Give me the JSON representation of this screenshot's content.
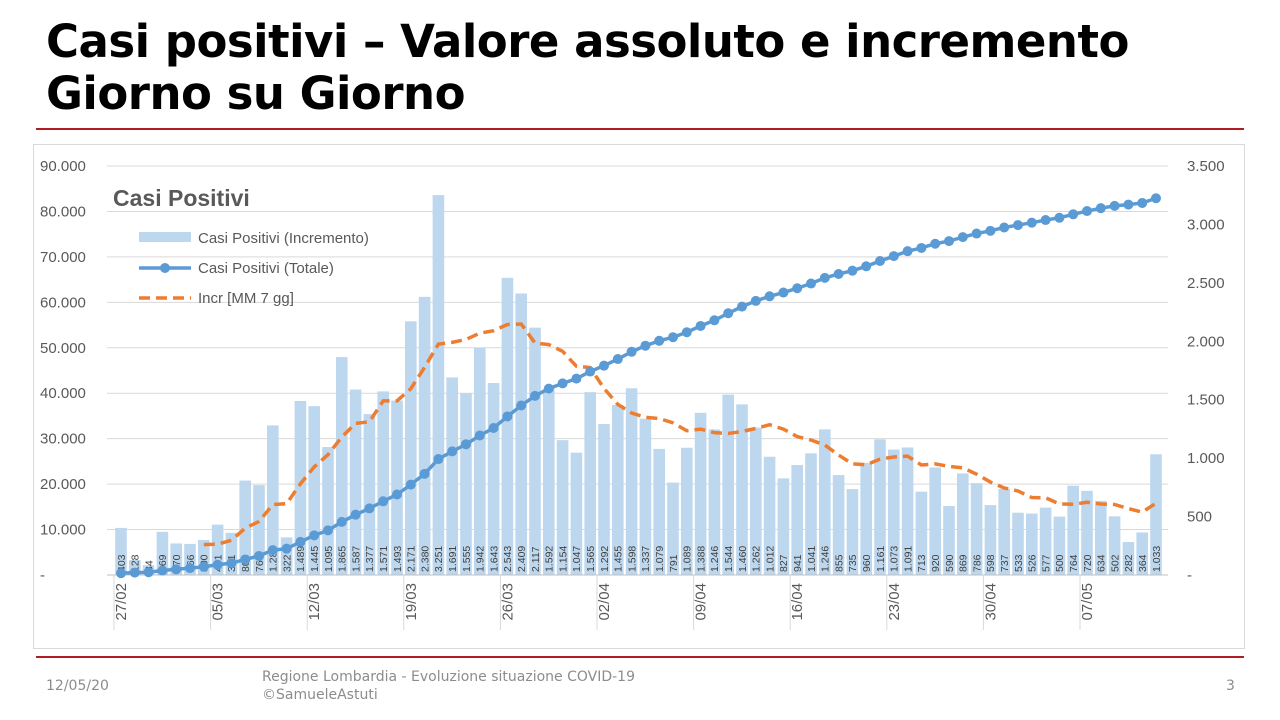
{
  "slide": {
    "title_line1": "Casi positivi – Valore assoluto e incremento",
    "title_line2": "Giorno su Giorno",
    "footer_date": "12/05/20",
    "footer_text_line1": "Regione Lombardia - Evoluzione situazione COVID-19",
    "footer_text_line2": "©SamueleAstuti",
    "page_number": "3"
  },
  "chart_data": {
    "type": "bar+line",
    "title": "Casi Positivi",
    "start_date": "27/02",
    "x_tick_labels": [
      "27/02",
      "05/03",
      "12/03",
      "19/03",
      "26/03",
      "02/04",
      "09/04",
      "16/04",
      "23/04",
      "30/04",
      "07/05"
    ],
    "x_tick_step_days": 7,
    "left_axis": {
      "ylim": [
        0,
        90000
      ],
      "ticks": [
        "-",
        "10.000",
        "20.000",
        "30.000",
        "40.000",
        "50.000",
        "60.000",
        "70.000",
        "80.000",
        "90.000"
      ]
    },
    "right_axis": {
      "ylim": [
        0,
        3500
      ],
      "ticks": [
        "-",
        "500",
        "1.000",
        "1.500",
        "2.000",
        "2.500",
        "3.000",
        "3.500"
      ]
    },
    "legend": [
      "Casi Positivi (Incremento)",
      "Casi Positivi (Totale)",
      "Incr [MM 7 gg]"
    ],
    "legend_placement": "top-left",
    "series": [
      {
        "name": "Casi Positivi (Incremento)",
        "type": "bar",
        "axis": "right",
        "values": [
          403,
          128,
          84,
          369,
          270,
          266,
          300,
          431,
          361,
          808,
          769,
          1280,
          322,
          1489,
          1445,
          1095,
          1865,
          1587,
          1377,
          1571,
          1493,
          2171,
          2380,
          3251,
          1691,
          1555,
          1942,
          1643,
          2543,
          2409,
          2117,
          1592,
          1154,
          1047,
          1565,
          1292,
          1455,
          1598,
          1337,
          1079,
          791,
          1089,
          1388,
          1246,
          1544,
          1460,
          1262,
          1012,
          827,
          941,
          1041,
          1246,
          855,
          735,
          960,
          1161,
          1073,
          1091,
          713,
          920,
          590,
          869,
          786,
          598,
          737,
          533,
          526,
          577,
          500,
          764,
          720,
          634,
          502,
          282,
          364,
          1033
        ],
        "labels": [
          "403",
          "128",
          "84",
          "369",
          "270",
          "266",
          "300",
          "431",
          "361",
          "808",
          "769",
          "1.280",
          "322",
          "1.489",
          "1.445",
          "1.095",
          "1.865",
          "1.587",
          "1.377",
          "1.571",
          "1.493",
          "2.171",
          "2.380",
          "3.251",
          "1.691",
          "1.555",
          "1.942",
          "1.643",
          "2.543",
          "2.409",
          "2.117",
          "1.592",
          "1.154",
          "1.047",
          "1.565",
          "1.292",
          "1.455",
          "1.598",
          "1.337",
          "1.079",
          "791",
          "1.089",
          "1.388",
          "1.246",
          "1.544",
          "1.460",
          "1.262",
          "1.012",
          "827",
          "941",
          "1.041",
          "1.246",
          "855",
          "735",
          "960",
          "1.161",
          "1.073",
          "1.091",
          "713",
          "920",
          "590",
          "869",
          "786",
          "598",
          "737",
          "533",
          "526",
          "577",
          "500",
          "764",
          "720",
          "634",
          "502",
          "282",
          "364",
          "1.033"
        ]
      },
      {
        "name": "Casi Positivi (Totale)",
        "type": "line",
        "axis": "left",
        "derived": "cumulative sum of Incremento"
      },
      {
        "name": "Incr [MM 7 gg]",
        "type": "line-dashed",
        "axis": "right",
        "derived": "7-day moving average of Incremento"
      }
    ],
    "colors": {
      "bar": "#bdd7ee",
      "total": "#5b9bd5",
      "ma": "#ed7d31",
      "grid": "#d9d9d9",
      "text": "#595959"
    }
  }
}
